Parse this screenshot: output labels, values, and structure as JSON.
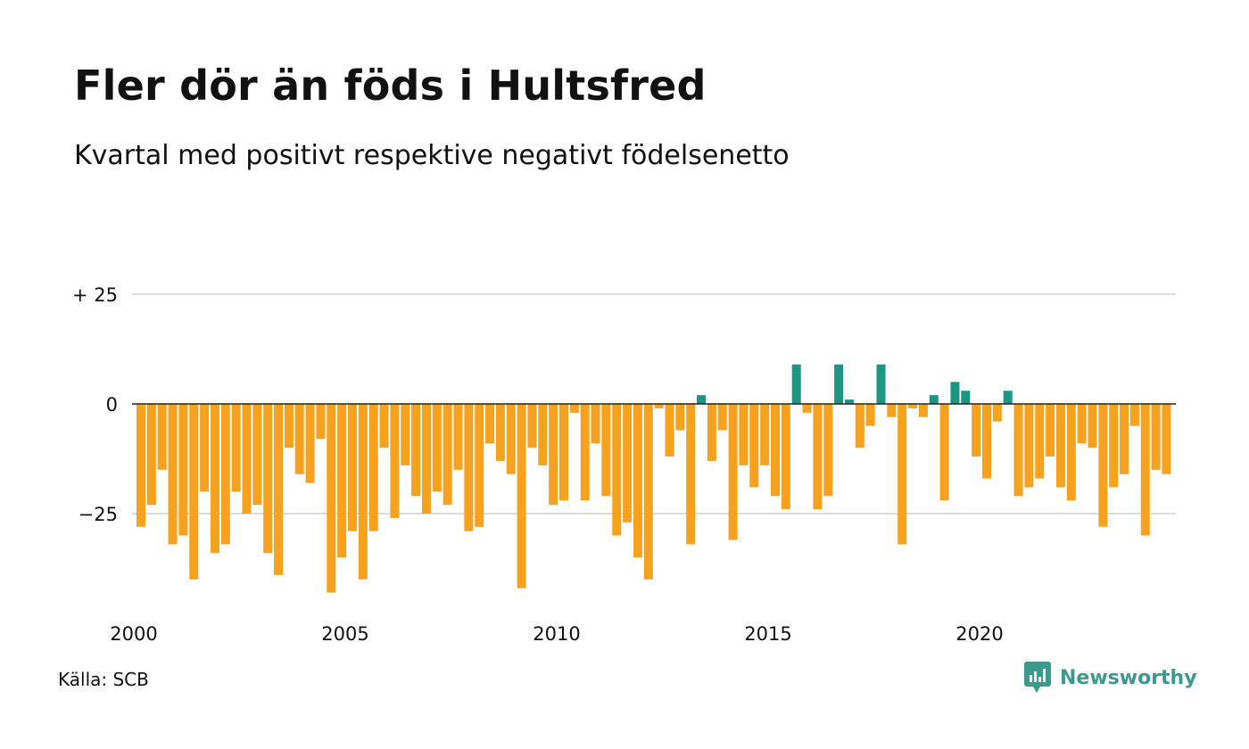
{
  "title": "Fler dör än föds i Hultsfred",
  "subtitle": "Kvartal med positivt respektive negativt födelsenetto",
  "source": "Källa: SCB",
  "logo_text": "Newsworthy",
  "colors": {
    "negative": "#f6a21e",
    "positive": "#1b9682",
    "grid": "#dddddd",
    "zero_line": "#222222",
    "logo": "#3a9a8c"
  },
  "chart_data": {
    "type": "bar",
    "x_start_year": 2000,
    "periods_per_year": 4,
    "ylim": [
      -45,
      30
    ],
    "y_ticks": [
      {
        "value": 25,
        "label": "+ 25"
      },
      {
        "value": 0,
        "label": "0"
      },
      {
        "value": -25,
        "label": "−25"
      }
    ],
    "x_ticks": [
      {
        "value": 2000,
        "label": "2000"
      },
      {
        "value": 2005,
        "label": "2005"
      },
      {
        "value": 2010,
        "label": "2010"
      },
      {
        "value": 2015,
        "label": "2015"
      },
      {
        "value": 2020,
        "label": "2020"
      }
    ],
    "values": [
      -28,
      -23,
      -15,
      -32,
      -30,
      -40,
      -20,
      -34,
      -32,
      -20,
      -25,
      -23,
      -34,
      -39,
      -10,
      -16,
      -18,
      -8,
      -43,
      -35,
      -29,
      -40,
      -29,
      -10,
      -26,
      -14,
      -21,
      -25,
      -20,
      -23,
      -15,
      -29,
      -28,
      -9,
      -13,
      -16,
      -42,
      -10,
      -14,
      -23,
      -22,
      -2,
      -22,
      -9,
      -21,
      -30,
      -27,
      -35,
      -40,
      -1,
      -12,
      -6,
      -32,
      2,
      -13,
      -6,
      -31,
      -14,
      -19,
      -14,
      -21,
      -24,
      9,
      -2,
      -24,
      -21,
      9,
      1,
      -10,
      -5,
      9,
      -3,
      -32,
      -1,
      -3,
      2,
      -22,
      5,
      3,
      -12,
      -17,
      -4,
      3,
      -21,
      -19,
      -17,
      -12,
      -19,
      -22,
      -9,
      -10,
      -28,
      -19,
      -16,
      -5,
      -30,
      -15,
      -16
    ]
  }
}
